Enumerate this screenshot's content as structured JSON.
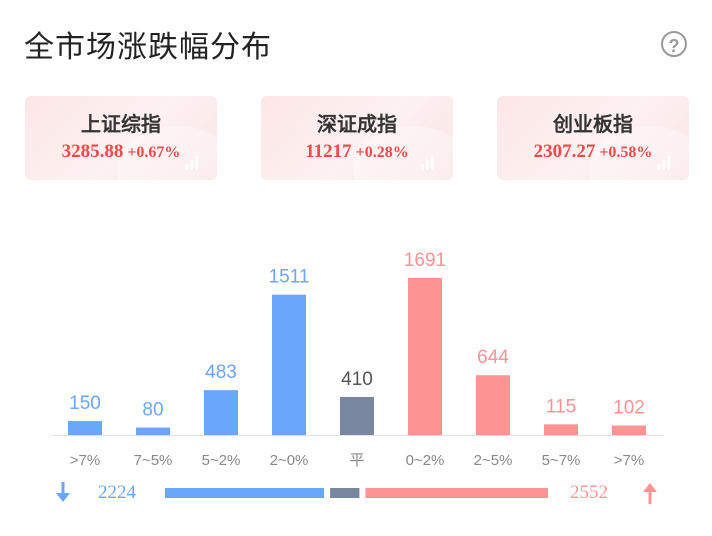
{
  "header": {
    "title": "全市场涨跌幅分布",
    "help_icon": "question-circle-icon"
  },
  "indices": [
    {
      "name": "上证综指",
      "price": "3285.88",
      "change": "+0.67%"
    },
    {
      "name": "深证成指",
      "price": "11217",
      "change": "+0.28%"
    },
    {
      "name": "创业板指",
      "price": "2307.27",
      "change": "+0.58%"
    }
  ],
  "colors": {
    "down": "#6aa6fb",
    "flat": "#7886a0",
    "up": "#fd9494",
    "up_text": "#ef4a4a"
  },
  "chart_data": {
    "type": "bar",
    "categories": [
      ">7%",
      "7~5%",
      "5~2%",
      "2~0%",
      "平",
      "0~2%",
      "2~5%",
      "5~7%",
      ">7%"
    ],
    "values": [
      150,
      80,
      483,
      1511,
      410,
      1691,
      644,
      115,
      102
    ],
    "groups": [
      "down",
      "down",
      "down",
      "down",
      "flat",
      "up",
      "up",
      "up",
      "up"
    ],
    "title": "",
    "xlabel": "",
    "ylabel": ""
  },
  "summary": {
    "down_count": "2224",
    "up_count": "2552",
    "flat_count": 410,
    "down_icon": "arrow-down-icon",
    "up_icon": "arrow-up-icon"
  }
}
